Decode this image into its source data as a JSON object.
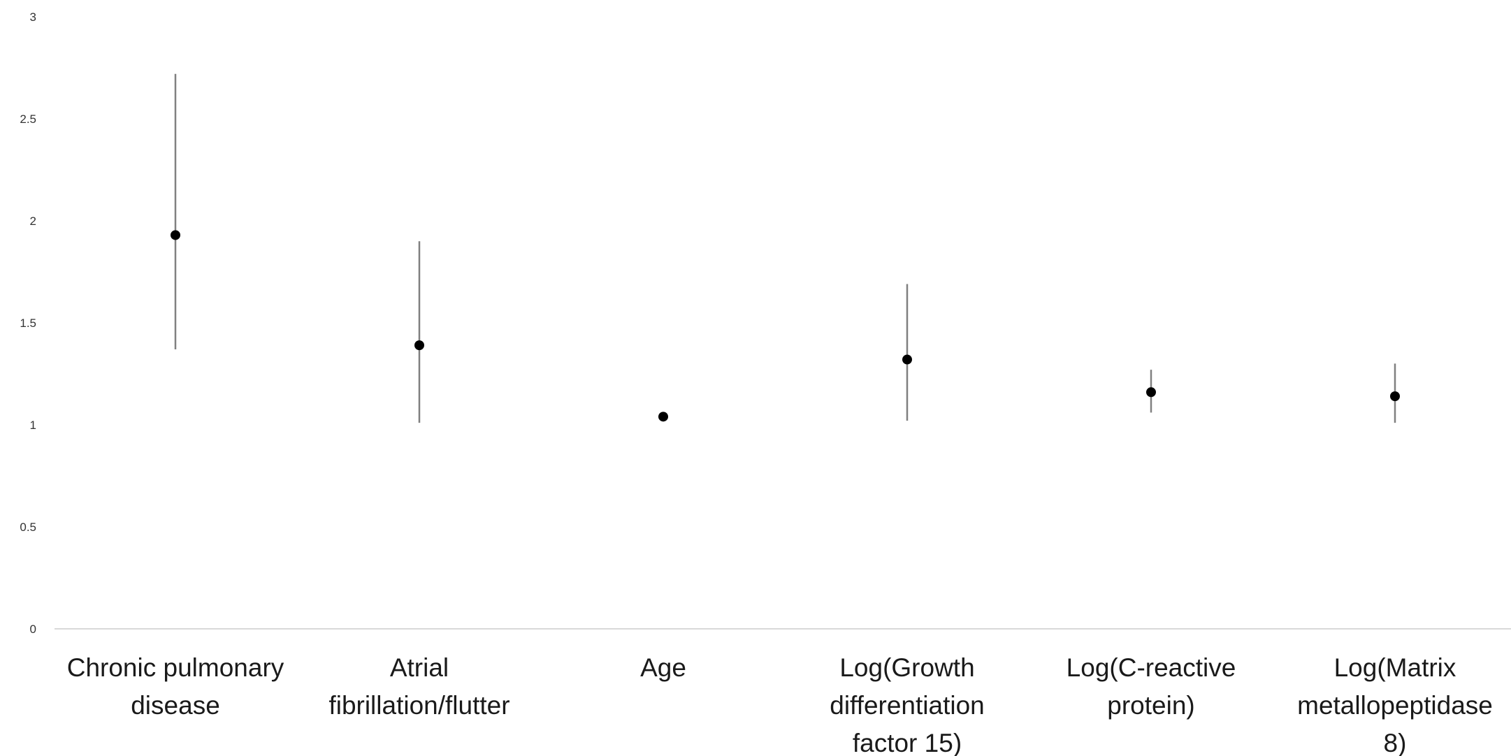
{
  "chart_data": {
    "type": "scatter",
    "title": "",
    "xlabel": "",
    "ylabel": "",
    "ylim": [
      0,
      3
    ],
    "yticks": [
      "0",
      "0.5",
      "1",
      "1.5",
      "2",
      "2.5",
      "3"
    ],
    "grid": false,
    "categories": [
      [
        "Chronic pulmonary",
        "disease"
      ],
      [
        "Atrial",
        "fibrillation/flutter"
      ],
      [
        "Age"
      ],
      [
        "Log(Growth",
        "differentiation",
        "factor 15)"
      ],
      [
        "Log(C-reactive",
        "protein)"
      ],
      [
        "Log(Matrix",
        "metallopeptidase",
        "8)"
      ]
    ],
    "series": [
      {
        "values": [
          1.93,
          1.39,
          1.04,
          1.32,
          1.16,
          1.14
        ],
        "lower": [
          1.37,
          1.01,
          1.03,
          1.02,
          1.06,
          1.01
        ],
        "upper": [
          2.72,
          1.9,
          1.05,
          1.69,
          1.27,
          1.3
        ]
      }
    ],
    "colors": {
      "point": "#000000",
      "errorbar": "#808080",
      "axis": "#d9d9d9"
    }
  }
}
